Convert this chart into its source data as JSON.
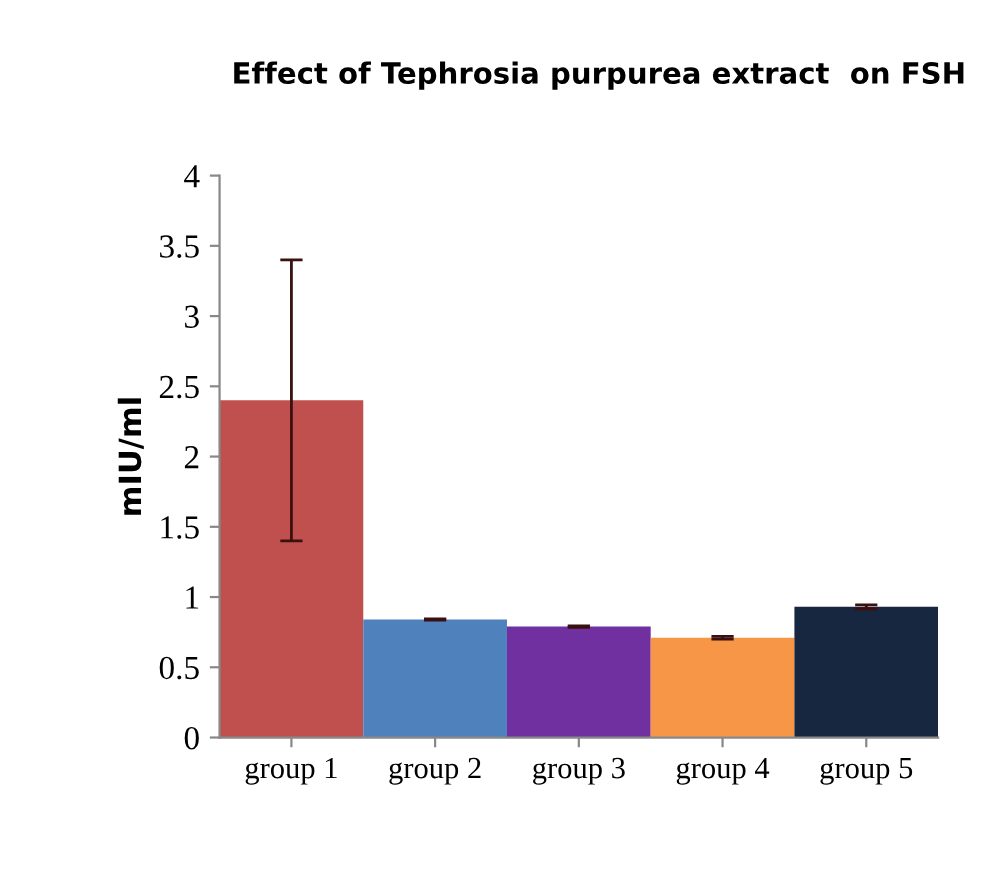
{
  "chart_data": {
    "type": "bar",
    "title": "Effect of Tephrosia purpurea extract  on FSH",
    "ylabel": "mIU/ml",
    "categories": [
      "group 1",
      "group 2",
      "group 3",
      "group 4",
      "group 5"
    ],
    "values": [
      2.4,
      0.84,
      0.79,
      0.71,
      0.93
    ],
    "errors": [
      1.0,
      0.005,
      0.005,
      0.01,
      0.015
    ],
    "colors": [
      "#c0504d",
      "#4f81bd",
      "#7030a0",
      "#f79646",
      "#17273f"
    ],
    "ylim": [
      0,
      4
    ],
    "yticks": [
      0,
      0.5,
      1,
      1.5,
      2,
      2.5,
      3,
      3.5,
      4
    ],
    "grid": false
  }
}
